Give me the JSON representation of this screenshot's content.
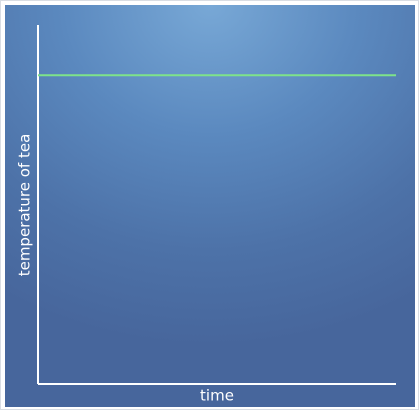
{
  "chart_data": {
    "type": "line",
    "title": "",
    "xlabel": "time",
    "ylabel": "temperature of tea",
    "x": [
      0,
      1
    ],
    "xlim": [
      0,
      1
    ],
    "ylim": [
      0,
      1
    ],
    "series": [
      {
        "values": [
          0.86,
          0.86
        ],
        "color": "#7ee38a"
      }
    ],
    "grid": false,
    "legend": "none",
    "tick_labels_shown": false
  },
  "colors": {
    "background": "#5b89bf",
    "axes": "#ffffff",
    "line": "#7ee38a"
  }
}
